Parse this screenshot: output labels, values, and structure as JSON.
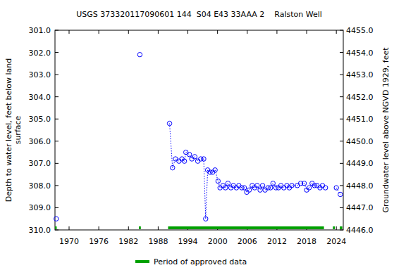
{
  "chart_data": {
    "type": "scatter",
    "title": "USGS 373320117090601 144  S04 E43 33AAA 2    Ralston Well",
    "ylabel": [
      "Depth to water level, feet below land",
      "surface"
    ],
    "y2label": "Groundwater level above NGVD 1929, feet",
    "color": "#0000ff",
    "marker": "circle",
    "line_style": "dotted",
    "x": [
      1967.4,
      1984.3,
      1990.3,
      1990.9,
      1991.5,
      1992.2,
      1992.8,
      1993.3,
      1993.6,
      1994.3,
      1994.8,
      1995.4,
      1996.0,
      1996.6,
      1997.2,
      1997.6,
      1998.0,
      1998.5,
      1999.0,
      1999.5,
      2000.1,
      2000.5,
      2001.1,
      2001.6,
      2002.1,
      2002.7,
      2003.2,
      2003.8,
      2004.3,
      2004.9,
      2005.4,
      2005.9,
      2006.4,
      2007.0,
      2007.5,
      2008.0,
      2008.6,
      2009.1,
      2009.6,
      2010.2,
      2010.7,
      2011.2,
      2011.8,
      2012.3,
      2012.8,
      2013.4,
      2014.0,
      2014.5,
      2015.0,
      2016.1,
      2016.8,
      2017.5,
      2018.0,
      2018.5,
      2019.1,
      2019.6,
      2020.1,
      2020.7,
      2021.2,
      2021.8,
      2024.0,
      2024.8
    ],
    "values": [
      309.5,
      302.1,
      305.2,
      307.2,
      306.8,
      306.9,
      306.8,
      306.9,
      306.5,
      306.6,
      306.8,
      306.7,
      306.9,
      306.8,
      306.8,
      309.5,
      307.3,
      307.4,
      307.4,
      307.3,
      307.8,
      308.1,
      308.0,
      308.1,
      307.9,
      308.1,
      308.0,
      308.1,
      308.0,
      308.1,
      308.1,
      308.3,
      308.2,
      308.0,
      308.1,
      308.0,
      308.2,
      308.0,
      308.2,
      308.1,
      308.1,
      307.9,
      308.1,
      308.1,
      308.0,
      308.1,
      308.0,
      308.1,
      308.0,
      308.0,
      307.9,
      307.9,
      308.2,
      308.1,
      307.9,
      308.0,
      308.0,
      308.1,
      308.0,
      308.1,
      308.1,
      308.4
    ],
    "xlim": [
      1967.15,
      2025.4
    ],
    "xticks": [
      1970,
      1976,
      1982,
      1988,
      1994,
      2000,
      2006,
      2012,
      2018,
      2024
    ],
    "ylim": [
      310,
      301
    ],
    "yticks": [
      {
        "value": 301,
        "label": "301.0"
      },
      {
        "value": 302,
        "label": "302.0"
      },
      {
        "value": 303,
        "label": "303.0"
      },
      {
        "value": 304,
        "label": "304.0"
      },
      {
        "value": 305,
        "label": "305.0"
      },
      {
        "value": 306,
        "label": "306.0"
      },
      {
        "value": 307,
        "label": "307.0"
      },
      {
        "value": 308,
        "label": "308.0"
      },
      {
        "value": 309,
        "label": "309.0"
      },
      {
        "value": 310,
        "label": "310.0"
      }
    ],
    "y2lim": [
      4446,
      4455
    ],
    "y2ticks": [
      {
        "value": 4446,
        "label": "4446.0"
      },
      {
        "value": 4447,
        "label": "4447.0"
      },
      {
        "value": 4448,
        "label": "4448.0"
      },
      {
        "value": 4449,
        "label": "4449.0"
      },
      {
        "value": 4450,
        "label": "4450.0"
      },
      {
        "value": 4451,
        "label": "4451.0"
      },
      {
        "value": 4452,
        "label": "4452.0"
      },
      {
        "value": 4453,
        "label": "4453.0"
      },
      {
        "value": 4454,
        "label": "4454.0"
      },
      {
        "value": 4455,
        "label": "4455.0"
      }
    ],
    "approved_periods": {
      "name": "Period of approved data",
      "color": "#00a000",
      "ranges": [
        [
          1967.15,
          1967.5
        ],
        [
          1984.1,
          1984.5
        ],
        [
          1990.0,
          2021.5
        ],
        [
          2023.3,
          2023.7
        ],
        [
          2024.7,
          2025.2
        ]
      ]
    },
    "legend": "bottom"
  }
}
